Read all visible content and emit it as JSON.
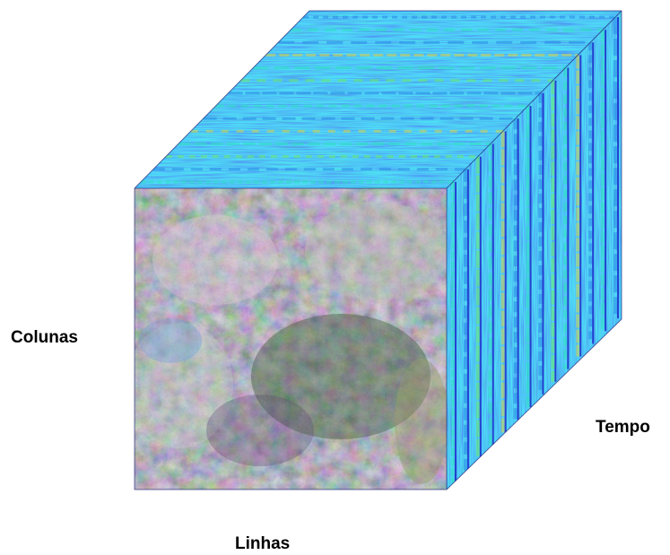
{
  "labels": {
    "columns": "Colunas",
    "time": "Tempo",
    "rows": "Linhas"
  },
  "colors": {
    "background": "#ffffff",
    "text": "#000000",
    "timeseries_dark": "#1a1fc8",
    "timeseries_mid": "#2a8be8",
    "timeseries_light": "#2ee0c0",
    "timeseries_green": "#6ee86a",
    "timeseries_warm": "#d8d04a",
    "image_base": "#6e7468"
  },
  "front_face": "false-color satellite image composite",
  "top_side_faces": "stacked time-series layers"
}
